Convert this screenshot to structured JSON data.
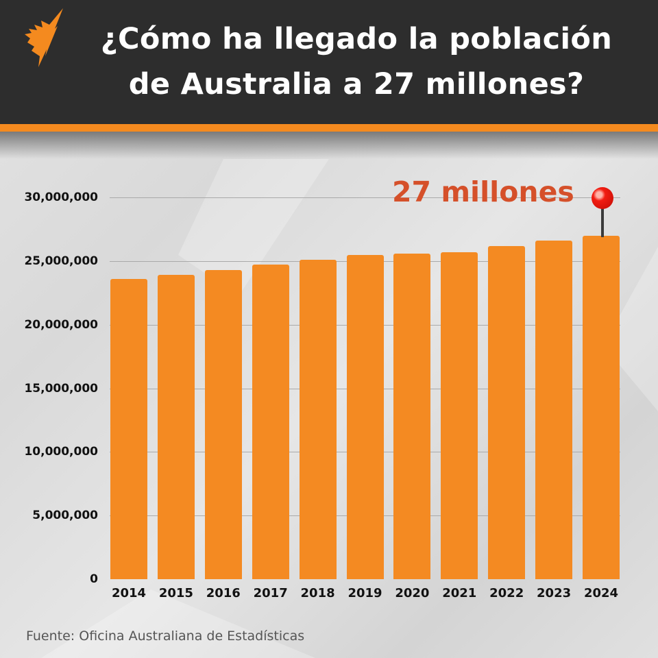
{
  "header": {
    "title_line1": "¿Cómo ha llegado la población",
    "title_line2": "de Australia a 27 millones?",
    "logo": "sbs-logo-icon",
    "background_color": "#2d2d2d",
    "accent_color": "#f48a1f"
  },
  "annotation": {
    "label": "27 millones",
    "color": "#d5502a",
    "marker": "pin-icon"
  },
  "source": "Fuente: Oficina Australiana de Estadísticas",
  "chart_data": {
    "type": "bar",
    "title": "¿Cómo ha llegado la población de Australia a 27 millones?",
    "xlabel": "",
    "ylabel": "",
    "categories": [
      "2014",
      "2015",
      "2016",
      "2017",
      "2018",
      "2019",
      "2020",
      "2021",
      "2022",
      "2023",
      "2024"
    ],
    "values": [
      23600000,
      23900000,
      24300000,
      24700000,
      25100000,
      25500000,
      25600000,
      25700000,
      26200000,
      26600000,
      27000000
    ],
    "ylim": [
      0,
      30000000
    ],
    "yticks": [
      "0",
      "5,000,000",
      "10,000,000",
      "15,000,000",
      "20,000,000",
      "25,000,000",
      "30,000,000"
    ],
    "grid": true,
    "legend": null,
    "bar_color": "#f48a22",
    "annotations": [
      {
        "x": "2024",
        "text": "27 millones"
      }
    ]
  }
}
